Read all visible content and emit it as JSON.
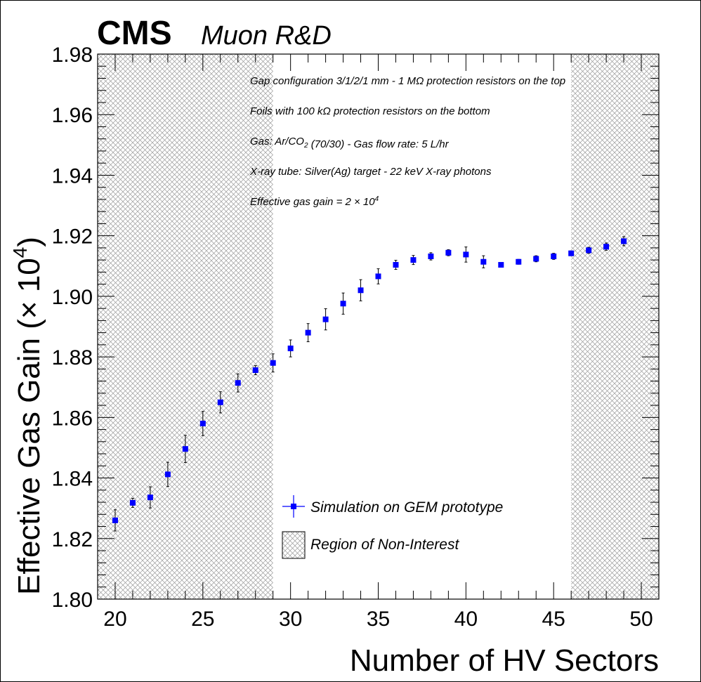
{
  "chart_data": {
    "type": "scatter",
    "title": "",
    "header": {
      "experiment": "CMS",
      "subtitle": "Muon R&D"
    },
    "xlabel": "Number of HV Sectors",
    "ylabel_main": "Effective Gas Gain (",
    "ylabel_times": "×",
    "ylabel_base": " 10",
    "ylabel_exp": "4",
    "ylabel_close": ")",
    "xlim": [
      19,
      51
    ],
    "ylim": [
      1.8,
      1.98
    ],
    "x_ticks": [
      "20",
      "25",
      "30",
      "35",
      "40",
      "45",
      "50"
    ],
    "y_ticks": [
      "1.80",
      "1.82",
      "1.84",
      "1.86",
      "1.88",
      "1.90",
      "1.92",
      "1.94",
      "1.96",
      "1.98"
    ],
    "non_interest_regions": [
      [
        19,
        29
      ],
      [
        46,
        51
      ]
    ],
    "series": [
      {
        "name": "Simulation on GEM prototype",
        "color": "#0000ff",
        "x": [
          20,
          21,
          22,
          23,
          24,
          25,
          26,
          27,
          28,
          29,
          30,
          31,
          32,
          33,
          34,
          35,
          36,
          37,
          38,
          39,
          40,
          41,
          42,
          43,
          44,
          45,
          46,
          47,
          48,
          49
        ],
        "y": [
          1.826,
          1.8318,
          1.8336,
          1.8412,
          1.8496,
          1.858,
          1.865,
          1.8714,
          1.8756,
          1.878,
          1.8828,
          1.888,
          1.8924,
          1.8976,
          1.902,
          1.9066,
          1.9104,
          1.912,
          1.9132,
          1.9144,
          1.9138,
          1.9114,
          1.9104,
          1.9114,
          1.9124,
          1.9132,
          1.9142,
          1.9152,
          1.9164,
          1.9182
        ],
        "yerr": [
          0.0035,
          0.0015,
          0.0035,
          0.004,
          0.0045,
          0.004,
          0.0035,
          0.003,
          0.0015,
          0.003,
          0.0028,
          0.003,
          0.0035,
          0.0035,
          0.0035,
          0.0025,
          0.0015,
          0.0015,
          0.0012,
          0.001,
          0.0025,
          0.002,
          0.0005,
          0.0008,
          0.001,
          0.001,
          0.0008,
          0.001,
          0.0012,
          0.0015
        ]
      }
    ],
    "legend": {
      "position": "bottom-center",
      "entries": [
        {
          "label": "Simulation on GEM prototype",
          "symbol": "marker"
        },
        {
          "label": "Region of Non-Interest",
          "symbol": "hatch"
        }
      ]
    },
    "annotations": [
      {
        "parts": [
          [
            "Gap configuration 3/1/2/1 mm - 1 MΩ protection resistors on the top",
            ""
          ]
        ]
      },
      {
        "parts": [
          [
            "Foils with 100 kΩ protection resistors on the bottom",
            ""
          ]
        ]
      },
      {
        "parts": [
          [
            "Gas: Ar/CO",
            ""
          ],
          [
            "2",
            "sub"
          ],
          [
            " (70/30) - Gas flow rate: 5 L/hr",
            ""
          ]
        ]
      },
      {
        "parts": [
          [
            "X-ray tube: Silver(Ag) target - 22 keV X-ray photons",
            ""
          ]
        ]
      },
      {
        "parts": [
          [
            "Effective gas gain = 2 × 10",
            ""
          ],
          [
            "4",
            "sup"
          ]
        ]
      }
    ]
  }
}
